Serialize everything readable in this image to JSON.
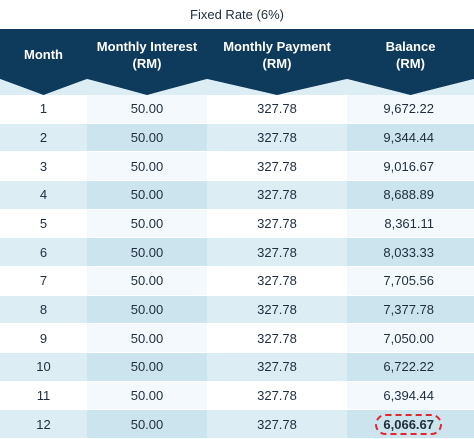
{
  "title": "Fixed Rate (6%)",
  "headers": {
    "month": "Month",
    "interest_line1": "Monthly Interest",
    "interest_line2": "(RM)",
    "payment_line1": "Monthly Payment",
    "payment_line2": "(RM)",
    "balance_line1": "Balance",
    "balance_line2": "(RM)"
  },
  "rows": [
    {
      "month": "1",
      "interest": "50.00",
      "payment": "327.78",
      "balance": "9,672.22"
    },
    {
      "month": "2",
      "interest": "50.00",
      "payment": "327.78",
      "balance": "9,344.44"
    },
    {
      "month": "3",
      "interest": "50.00",
      "payment": "327.78",
      "balance": "9,016.67"
    },
    {
      "month": "4",
      "interest": "50.00",
      "payment": "327.78",
      "balance": "8,688.89"
    },
    {
      "month": "5",
      "interest": "50.00",
      "payment": "327.78",
      "balance": "8,361.11"
    },
    {
      "month": "6",
      "interest": "50.00",
      "payment": "327.78",
      "balance": "8,033.33"
    },
    {
      "month": "7",
      "interest": "50.00",
      "payment": "327.78",
      "balance": "7,705.56"
    },
    {
      "month": "8",
      "interest": "50.00",
      "payment": "327.78",
      "balance": "7,377.78"
    },
    {
      "month": "9",
      "interest": "50.00",
      "payment": "327.78",
      "balance": "7,050.00"
    },
    {
      "month": "10",
      "interest": "50.00",
      "payment": "327.78",
      "balance": "6,722.22"
    },
    {
      "month": "11",
      "interest": "50.00",
      "payment": "327.78",
      "balance": "6,394.44"
    },
    {
      "month": "12",
      "interest": "50.00",
      "payment": "327.78",
      "balance": "6,066.67"
    }
  ],
  "highlighted_balance": "6,066.67",
  "colors": {
    "header": "#0e3a5c",
    "row_tint": "#dcedf4",
    "highlight": "#e0262b",
    "text": "#1f2d3d"
  }
}
